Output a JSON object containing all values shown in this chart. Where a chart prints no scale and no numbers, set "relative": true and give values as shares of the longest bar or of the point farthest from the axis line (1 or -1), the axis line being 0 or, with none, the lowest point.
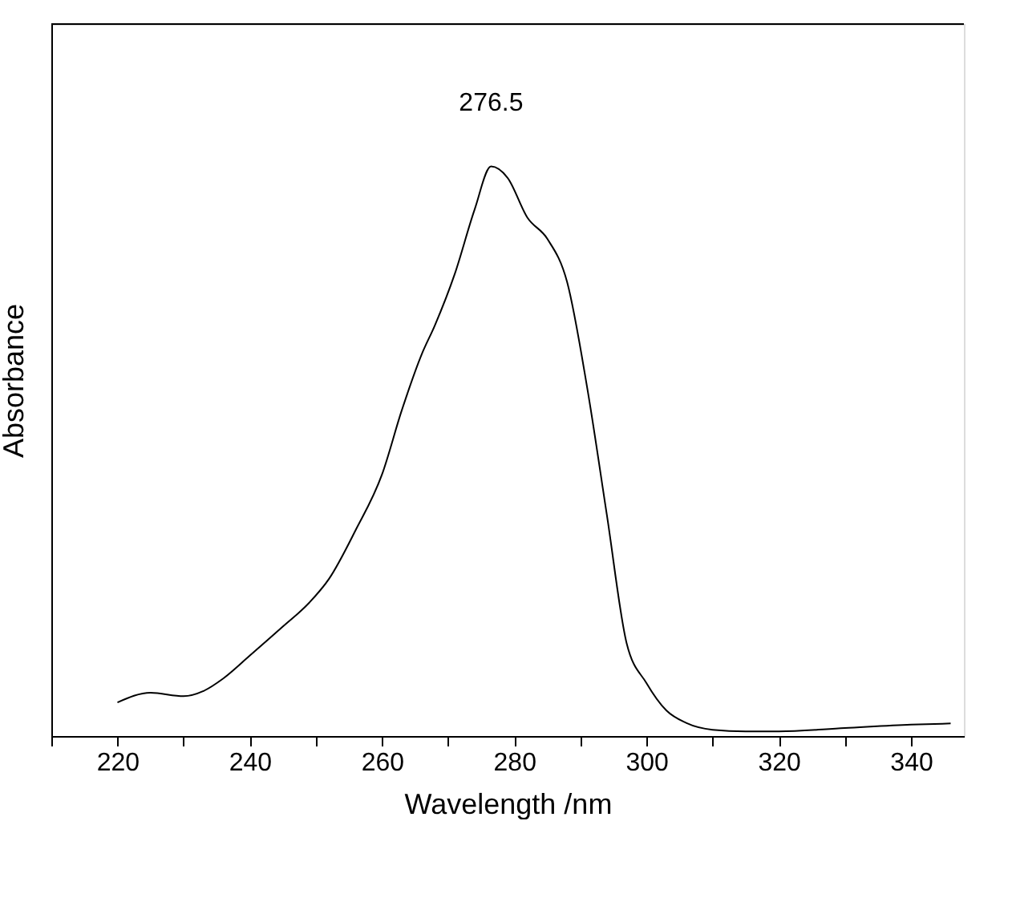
{
  "chart_data": {
    "type": "line",
    "xlabel": "Wavelength /nm",
    "ylabel": "Absorbance",
    "relative": true,
    "color": "#000000",
    "x": [
      220,
      225,
      230,
      233,
      236,
      240,
      245,
      249,
      252,
      256,
      260,
      263,
      266,
      268,
      271,
      274,
      276.5,
      279,
      282,
      285,
      288,
      291,
      294,
      297,
      300,
      303,
      306,
      310,
      315,
      320,
      330,
      340,
      346
    ],
    "values": [
      0.059,
      0.076,
      0.07,
      0.079,
      0.101,
      0.141,
      0.192,
      0.234,
      0.276,
      0.361,
      0.459,
      0.572,
      0.67,
      0.721,
      0.811,
      0.924,
      1.0,
      0.98,
      0.91,
      0.873,
      0.797,
      0.614,
      0.389,
      0.163,
      0.093,
      0.045,
      0.023,
      0.011,
      0.008,
      0.008,
      0.014,
      0.02,
      0.022
    ],
    "xlim": [
      210,
      348
    ],
    "xticks": [
      {
        "value": 210,
        "label": null
      },
      220,
      {
        "value": 230,
        "label": null
      },
      240,
      {
        "value": 250,
        "label": null
      },
      260,
      {
        "value": 270,
        "label": null
      },
      280,
      {
        "value": 290,
        "label": null
      },
      300,
      {
        "value": 310,
        "label": null
      },
      320,
      {
        "value": 330,
        "label": null
      },
      340
    ],
    "annotations": [
      {
        "text": "276.5",
        "x": 276.5,
        "y": 1.0
      }
    ],
    "grid": false
  }
}
